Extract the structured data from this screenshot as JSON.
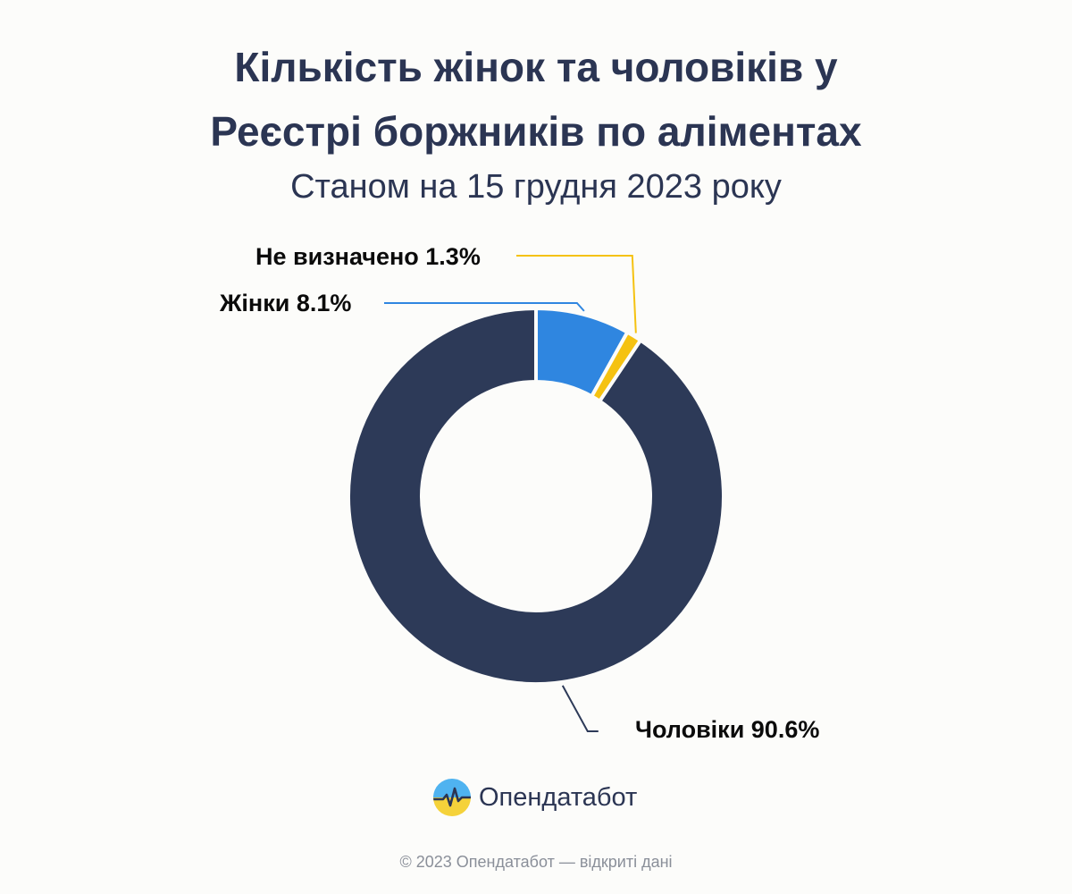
{
  "header": {
    "title_line1": "Кількість жінок та чоловіків у",
    "title_line2": "Реєстрі боржників по аліментах",
    "subtitle": "Станом на 15 грудня 2023 року"
  },
  "chart_data": {
    "type": "pie",
    "variant": "donut",
    "unit": "%",
    "slices": [
      {
        "label": "Чоловіки",
        "value": 90.6,
        "display": "Чоловіки 90.6%",
        "color": "#2d3a58"
      },
      {
        "label": "Жінки",
        "value": 8.1,
        "display": "Жінки 8.1%",
        "color": "#2f86e0"
      },
      {
        "label": "Не визначено",
        "value": 1.3,
        "display": "Не визначено 1.3%",
        "color": "#f5c211"
      }
    ],
    "legend": "none",
    "labels": "outside-with-leader-lines"
  },
  "brand": {
    "name": "Опендатабот",
    "logo_colors": [
      "#4fb3f0",
      "#f5d23a"
    ]
  },
  "footer": {
    "text": "© 2023 Опендатабот — відкриті дані"
  }
}
